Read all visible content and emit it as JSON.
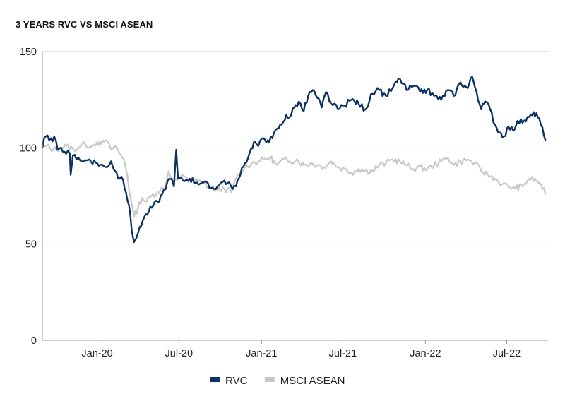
{
  "chart_data": {
    "type": "line",
    "title": "3 YEARS RVC VS MSCI ASEAN",
    "xlabel": "",
    "ylabel": "",
    "ylim": [
      0,
      150
    ],
    "yticks": [
      0,
      50,
      100,
      150
    ],
    "xlim": [
      "2019-09-01",
      "2022-10-01"
    ],
    "xticks": [
      {
        "date": "2020-01-01",
        "label": "Jan-20"
      },
      {
        "date": "2020-07-01",
        "label": "Jul-20"
      },
      {
        "date": "2021-01-01",
        "label": "Jan-21"
      },
      {
        "date": "2021-07-01",
        "label": "Jul-21"
      },
      {
        "date": "2022-01-01",
        "label": "Jan-22"
      },
      {
        "date": "2022-07-01",
        "label": "Jul-22"
      }
    ],
    "grid": "horizontal",
    "legend_position": "bottom-center",
    "series": [
      {
        "name": "RVC",
        "color": "#0d3262",
        "points": [
          [
            "2019-09-01",
            100
          ],
          [
            "2019-09-05",
            105
          ],
          [
            "2019-09-20",
            105
          ],
          [
            "2019-10-01",
            104
          ],
          [
            "2019-10-05",
            99
          ],
          [
            "2019-10-20",
            98
          ],
          [
            "2019-11-01",
            97
          ],
          [
            "2019-11-03",
            86
          ],
          [
            "2019-11-08",
            96
          ],
          [
            "2019-11-20",
            95
          ],
          [
            "2019-12-01",
            93
          ],
          [
            "2019-12-15",
            94
          ],
          [
            "2020-01-01",
            92
          ],
          [
            "2020-01-20",
            90
          ],
          [
            "2020-02-01",
            93
          ],
          [
            "2020-02-10",
            88
          ],
          [
            "2020-02-20",
            84
          ],
          [
            "2020-02-28",
            83
          ],
          [
            "2020-03-05",
            77
          ],
          [
            "2020-03-12",
            70
          ],
          [
            "2020-03-18",
            57
          ],
          [
            "2020-03-23",
            51
          ],
          [
            "2020-03-28",
            53
          ],
          [
            "2020-04-05",
            59
          ],
          [
            "2020-04-15",
            64
          ],
          [
            "2020-04-25",
            67
          ],
          [
            "2020-05-05",
            70
          ],
          [
            "2020-05-15",
            72
          ],
          [
            "2020-05-25",
            76
          ],
          [
            "2020-06-05",
            82
          ],
          [
            "2020-06-15",
            84
          ],
          [
            "2020-06-20",
            80
          ],
          [
            "2020-06-25",
            99
          ],
          [
            "2020-06-29",
            84
          ],
          [
            "2020-07-10",
            83
          ],
          [
            "2020-07-25",
            84
          ],
          [
            "2020-08-10",
            82
          ],
          [
            "2020-08-25",
            82
          ],
          [
            "2020-09-10",
            79
          ],
          [
            "2020-09-25",
            80
          ],
          [
            "2020-10-10",
            83
          ],
          [
            "2020-10-25",
            80
          ],
          [
            "2020-11-05",
            80
          ],
          [
            "2020-11-15",
            86
          ],
          [
            "2020-11-25",
            92
          ],
          [
            "2020-12-05",
            97
          ],
          [
            "2020-12-15",
            103
          ],
          [
            "2020-12-25",
            101
          ],
          [
            "2021-01-05",
            105
          ],
          [
            "2021-01-15",
            104
          ],
          [
            "2021-01-25",
            105
          ],
          [
            "2021-02-05",
            110
          ],
          [
            "2021-02-15",
            112
          ],
          [
            "2021-02-25",
            117
          ],
          [
            "2021-03-05",
            116
          ],
          [
            "2021-03-15",
            121
          ],
          [
            "2021-03-25",
            124
          ],
          [
            "2021-04-05",
            119
          ],
          [
            "2021-04-15",
            127
          ],
          [
            "2021-04-25",
            130
          ],
          [
            "2021-05-05",
            126
          ],
          [
            "2021-05-15",
            121
          ],
          [
            "2021-05-25",
            129
          ],
          [
            "2021-06-05",
            123
          ],
          [
            "2021-06-20",
            120
          ],
          [
            "2021-07-05",
            122
          ],
          [
            "2021-07-20",
            125
          ],
          [
            "2021-08-05",
            123
          ],
          [
            "2021-08-20",
            120
          ],
          [
            "2021-09-05",
            128
          ],
          [
            "2021-09-20",
            130
          ],
          [
            "2021-10-05",
            127
          ],
          [
            "2021-10-20",
            131
          ],
          [
            "2021-11-05",
            136
          ],
          [
            "2021-11-20",
            130
          ],
          [
            "2021-12-05",
            132
          ],
          [
            "2021-12-20",
            129
          ],
          [
            "2022-01-05",
            130
          ],
          [
            "2022-01-20",
            127
          ],
          [
            "2022-02-05",
            125
          ],
          [
            "2022-02-20",
            130
          ],
          [
            "2022-03-05",
            127
          ],
          [
            "2022-03-20",
            134
          ],
          [
            "2022-04-05",
            131
          ],
          [
            "2022-04-15",
            137
          ],
          [
            "2022-04-25",
            129
          ],
          [
            "2022-05-05",
            120
          ],
          [
            "2022-05-15",
            124
          ],
          [
            "2022-05-25",
            120
          ],
          [
            "2022-06-05",
            112
          ],
          [
            "2022-06-15",
            108
          ],
          [
            "2022-06-25",
            106
          ],
          [
            "2022-07-05",
            111
          ],
          [
            "2022-07-15",
            109
          ],
          [
            "2022-07-25",
            114
          ],
          [
            "2022-08-05",
            113
          ],
          [
            "2022-08-20",
            116
          ],
          [
            "2022-09-05",
            118
          ],
          [
            "2022-09-15",
            112
          ],
          [
            "2022-09-25",
            104
          ]
        ]
      },
      {
        "name": "MSCI ASEAN",
        "color": "#c8c8c8",
        "points": [
          [
            "2019-09-01",
            100
          ],
          [
            "2019-09-10",
            101
          ],
          [
            "2019-09-25",
            99
          ],
          [
            "2019-10-10",
            100
          ],
          [
            "2019-10-25",
            101
          ],
          [
            "2019-11-10",
            99
          ],
          [
            "2019-11-25",
            101
          ],
          [
            "2019-12-05",
            102
          ],
          [
            "2019-12-20",
            101
          ],
          [
            "2020-01-01",
            103
          ],
          [
            "2020-01-10",
            102
          ],
          [
            "2020-01-20",
            104
          ],
          [
            "2020-02-01",
            99
          ],
          [
            "2020-02-10",
            101
          ],
          [
            "2020-02-20",
            97
          ],
          [
            "2020-03-01",
            94
          ],
          [
            "2020-03-08",
            86
          ],
          [
            "2020-03-15",
            74
          ],
          [
            "2020-03-23",
            64
          ],
          [
            "2020-04-01",
            69
          ],
          [
            "2020-04-10",
            74
          ],
          [
            "2020-04-20",
            72
          ],
          [
            "2020-05-01",
            75
          ],
          [
            "2020-05-15",
            77
          ],
          [
            "2020-06-01",
            80
          ],
          [
            "2020-06-08",
            88
          ],
          [
            "2020-06-20",
            82
          ],
          [
            "2020-07-05",
            85
          ],
          [
            "2020-07-20",
            84
          ],
          [
            "2020-08-05",
            83
          ],
          [
            "2020-08-20",
            82
          ],
          [
            "2020-09-05",
            80
          ],
          [
            "2020-09-25",
            78
          ],
          [
            "2020-10-10",
            79
          ],
          [
            "2020-10-25",
            77
          ],
          [
            "2020-11-10",
            86
          ],
          [
            "2020-11-25",
            90
          ],
          [
            "2020-12-10",
            92
          ],
          [
            "2020-12-25",
            93
          ],
          [
            "2021-01-05",
            94
          ],
          [
            "2021-01-20",
            95
          ],
          [
            "2021-02-05",
            91
          ],
          [
            "2021-02-20",
            94
          ],
          [
            "2021-03-05",
            93
          ],
          [
            "2021-03-20",
            94
          ],
          [
            "2021-04-05",
            91
          ],
          [
            "2021-04-20",
            92
          ],
          [
            "2021-05-05",
            91
          ],
          [
            "2021-05-20",
            90
          ],
          [
            "2021-06-05",
            93
          ],
          [
            "2021-06-20",
            90
          ],
          [
            "2021-07-05",
            89
          ],
          [
            "2021-07-20",
            87
          ],
          [
            "2021-08-05",
            89
          ],
          [
            "2021-08-20",
            88
          ],
          [
            "2021-09-05",
            88
          ],
          [
            "2021-09-20",
            91
          ],
          [
            "2021-10-05",
            92
          ],
          [
            "2021-10-20",
            94
          ],
          [
            "2021-11-05",
            93
          ],
          [
            "2021-11-20",
            91
          ],
          [
            "2021-12-05",
            89
          ],
          [
            "2021-12-20",
            90
          ],
          [
            "2022-01-05",
            89
          ],
          [
            "2022-01-20",
            91
          ],
          [
            "2022-02-05",
            93
          ],
          [
            "2022-02-20",
            95
          ],
          [
            "2022-03-05",
            91
          ],
          [
            "2022-03-20",
            93
          ],
          [
            "2022-04-05",
            94
          ],
          [
            "2022-04-20",
            92
          ],
          [
            "2022-05-05",
            88
          ],
          [
            "2022-05-20",
            86
          ],
          [
            "2022-06-05",
            84
          ],
          [
            "2022-06-20",
            81
          ],
          [
            "2022-07-05",
            80
          ],
          [
            "2022-07-20",
            79
          ],
          [
            "2022-08-05",
            80
          ],
          [
            "2022-08-20",
            84
          ],
          [
            "2022-09-05",
            83
          ],
          [
            "2022-09-15",
            81
          ],
          [
            "2022-09-25",
            76
          ]
        ]
      }
    ]
  }
}
